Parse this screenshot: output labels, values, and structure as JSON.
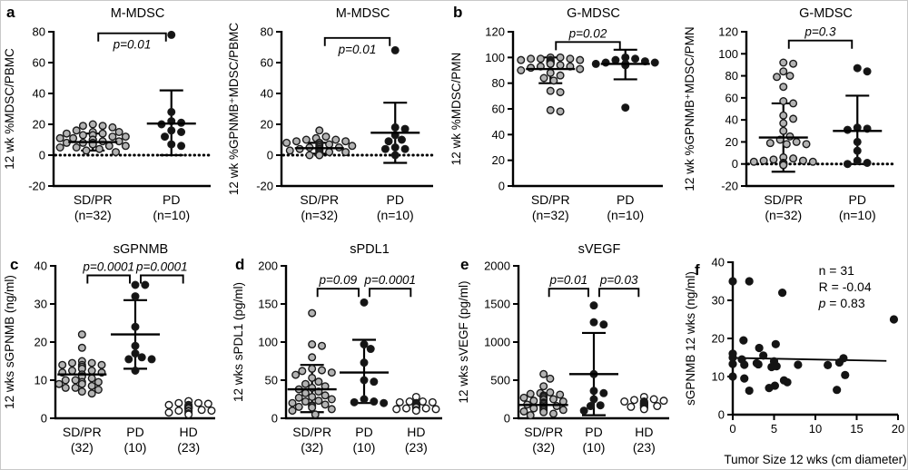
{
  "figure": {
    "background": "#ffffff",
    "border_color": "#c9c9c9",
    "panel_labels": {
      "a": "a",
      "b": "b",
      "c": "c",
      "d": "d",
      "e": "e",
      "f": "f"
    }
  },
  "colors": {
    "axis": "#000000",
    "gray_dot": "#b3b3b3",
    "black_dot": "#141414",
    "open_dot": "#ffffff",
    "dot_stroke": "#1a1a1a"
  },
  "chart_data": [
    {
      "id": "a1",
      "type": "dotplot",
      "title": "M-MDSC",
      "ylabel": "12 wk %MDSC/PBMC",
      "ylim": [
        -20,
        80
      ],
      "yticks": [
        -20,
        0,
        20,
        40,
        60,
        80
      ],
      "zero_dotted": true,
      "groups": [
        {
          "label": "SD/PR",
          "sublabel": "(n=32)",
          "fill": "gray",
          "values": [
            20,
            19,
            19,
            18,
            16,
            15,
            15,
            14,
            14,
            13,
            13,
            12,
            12,
            11,
            11,
            10,
            10,
            10,
            9,
            9,
            8,
            8,
            8,
            7,
            7,
            6,
            6,
            5,
            5,
            4,
            3,
            2
          ],
          "mean": 8.5,
          "err_lo": 3,
          "err_hi": 14
        },
        {
          "label": "PD",
          "sublabel": "(n=10)",
          "fill": "black",
          "values": [
            78,
            28,
            22,
            21,
            20,
            16,
            15,
            12,
            7,
            6
          ],
          "mean": 20.5,
          "err_lo": 0,
          "err_hi": 42
        }
      ],
      "comparisons": [
        {
          "g1": 0,
          "g2": 1,
          "y": 79,
          "label": "p=0.01",
          "label_side": "below"
        }
      ]
    },
    {
      "id": "a2",
      "type": "dotplot",
      "title": "M-MDSC",
      "ylabel": "12 wk %GPNMB⁺MDSC/PBMC",
      "ylim": [
        -20,
        80
      ],
      "yticks": [
        -20,
        0,
        20,
        40,
        60,
        80
      ],
      "zero_dotted": true,
      "groups": [
        {
          "label": "SD/PR",
          "sublabel": "(n=32)",
          "fill": "gray",
          "values": [
            16,
            12,
            11,
            10,
            10,
            9,
            9,
            8,
            8,
            8,
            7,
            7,
            6,
            6,
            5,
            5,
            5,
            4,
            4,
            4,
            3,
            3,
            3,
            2,
            2,
            2,
            1,
            1,
            1,
            0,
            0,
            0
          ],
          "mean": 4.5,
          "err_lo": 1,
          "err_hi": 8
        },
        {
          "label": "PD",
          "sublabel": "(n=10)",
          "fill": "black",
          "values": [
            68,
            18,
            17,
            13,
            10,
            9,
            5,
            4,
            4,
            0
          ],
          "mean": 14.5,
          "err_lo": -5,
          "err_hi": 34
        }
      ],
      "comparisons": [
        {
          "g1": 0,
          "g2": 1,
          "y": 76,
          "label": "p=0.01",
          "label_side": "below"
        }
      ]
    },
    {
      "id": "b1",
      "type": "dotplot",
      "title": "G-MDSC",
      "ylabel": "12 wk %MDSC/PMN",
      "ylim": [
        0,
        120
      ],
      "yticks": [
        0,
        20,
        40,
        60,
        80,
        100,
        120
      ],
      "zero_dotted": false,
      "groups": [
        {
          "label": "SD/PR",
          "sublabel": "(n=32)",
          "fill": "gray",
          "values": [
            100,
            100,
            99,
            99,
            99,
            98,
            98,
            98,
            98,
            97,
            97,
            97,
            96,
            96,
            96,
            95,
            95,
            95,
            94,
            93,
            93,
            92,
            91,
            90,
            88,
            86,
            84,
            82,
            74,
            73,
            59,
            58
          ],
          "mean": 91,
          "err_lo": 80,
          "err_hi": 100
        },
        {
          "label": "PD",
          "sublabel": "(n=10)",
          "fill": "black",
          "values": [
            100,
            99,
            98,
            97,
            96,
            96,
            95,
            95,
            94,
            61
          ],
          "mean": 95,
          "err_lo": 83,
          "err_hi": 106
        }
      ],
      "comparisons": [
        {
          "g1": 0,
          "g2": 1,
          "y": 112,
          "label": "p=0.02",
          "label_side": "above"
        }
      ]
    },
    {
      "id": "b2",
      "type": "dotplot",
      "title": "G-MDSC",
      "ylabel": "12 wk %GPNMB⁺MDSC/PMN",
      "ylim": [
        -20,
        120
      ],
      "yticks": [
        -20,
        0,
        20,
        40,
        60,
        80,
        100,
        120
      ],
      "zero_dotted": true,
      "groups": [
        {
          "label": "SD/PR",
          "sublabel": "(n=32)",
          "fill": "gray",
          "values": [
            92,
            91,
            84,
            80,
            79,
            70,
            57,
            55,
            44,
            41,
            37,
            30,
            25,
            22,
            20,
            19,
            18,
            18,
            6,
            5,
            4,
            3,
            3,
            2,
            2,
            1,
            1,
            0,
            0,
            0,
            -1,
            -1
          ],
          "mean": 24,
          "err_lo": -7,
          "err_hi": 55
        },
        {
          "label": "PD",
          "sublabel": "(n=10)",
          "fill": "black",
          "values": [
            87,
            84,
            33,
            32,
            31,
            20,
            12,
            3,
            1,
            0
          ],
          "mean": 30,
          "err_lo": 0,
          "err_hi": 62
        }
      ],
      "comparisons": [
        {
          "g1": 0,
          "g2": 1,
          "y": 112,
          "label": "p=0.3",
          "label_side": "above"
        }
      ]
    },
    {
      "id": "c",
      "type": "dotplot",
      "title": "sGPNMB",
      "ylabel": "12 wks sGPNMB (ng/ml)",
      "ylim": [
        0,
        40
      ],
      "yticks": [
        0,
        10,
        20,
        30,
        40
      ],
      "zero_dotted": false,
      "groups": [
        {
          "label": "SD/PR",
          "sublabel": "(32)",
          "fill": "gray",
          "values": [
            22,
            18.5,
            15,
            14.5,
            14.5,
            14,
            14,
            14,
            13.5,
            13.5,
            13,
            13,
            12.5,
            12.5,
            12,
            12,
            11.5,
            11,
            11,
            10.5,
            10,
            10,
            9.5,
            9.5,
            9,
            9,
            8.5,
            8,
            8,
            7.5,
            7,
            6.5
          ],
          "mean": 11.5,
          "err_lo": null,
          "err_hi": null
        },
        {
          "label": "PD",
          "sublabel": "(10)",
          "fill": "black",
          "values": [
            35,
            35,
            32,
            24,
            19,
            17,
            16,
            15.5,
            15.5,
            12.5
          ],
          "mean": 22,
          "err_lo": 13,
          "err_hi": 31
        },
        {
          "label": "HD",
          "sublabel": "(23)",
          "fill": "open",
          "values": [
            4.5,
            4,
            4,
            3.8,
            3.5,
            3.5,
            3.2,
            3,
            3,
            3,
            2.8,
            2.8,
            2.6,
            2.5,
            2.5,
            2.2,
            2,
            2,
            2,
            1.8,
            1.5,
            1.3,
            1
          ],
          "mean": null,
          "err_lo": null,
          "err_hi": null
        }
      ],
      "comparisons": [
        {
          "g1": 0,
          "g2": 1,
          "y": 37.5,
          "label": "p=0.0001",
          "label_side": "above"
        },
        {
          "g1": 1,
          "g2": 2,
          "y": 37.5,
          "label": "p=0.0001",
          "label_side": "above"
        }
      ]
    },
    {
      "id": "d",
      "type": "dotplot",
      "title": "sPDL1",
      "ylabel": "12 wks sPDL1 (pg/ml)",
      "ylim": [
        0,
        200
      ],
      "yticks": [
        0,
        50,
        100,
        150,
        200
      ],
      "zero_dotted": false,
      "groups": [
        {
          "label": "SD/PR",
          "sublabel": "(32)",
          "fill": "gray",
          "values": [
            138,
            97,
            95,
            80,
            65,
            63,
            62,
            60,
            57,
            53,
            48,
            45,
            42,
            40,
            38,
            35,
            33,
            30,
            28,
            27,
            25,
            23,
            22,
            20,
            18,
            17,
            16,
            15,
            14,
            12,
            10,
            5
          ],
          "mean": 38,
          "err_lo": 8,
          "err_hi": 70
        },
        {
          "label": "PD",
          "sublabel": "(10)",
          "fill": "black",
          "values": [
            152,
            97,
            91,
            73,
            50,
            48,
            25,
            22,
            21,
            20
          ],
          "mean": 60,
          "err_lo": 20,
          "err_hi": 103
        },
        {
          "label": "HD",
          "sublabel": "(23)",
          "fill": "open",
          "values": [
            28,
            22,
            22,
            21,
            21,
            20,
            20,
            19,
            18,
            18,
            17,
            17,
            16,
            16,
            15,
            15,
            14,
            13,
            13,
            12,
            12,
            11,
            10
          ],
          "mean": null,
          "err_lo": null,
          "err_hi": null
        }
      ],
      "comparisons": [
        {
          "g1": 0,
          "g2": 1,
          "y": 170,
          "label": "p=0.09",
          "label_side": "above"
        },
        {
          "g1": 1,
          "g2": 2,
          "y": 170,
          "label": "p=0.0001",
          "label_side": "above"
        }
      ]
    },
    {
      "id": "e",
      "type": "dotplot",
      "title": "sVEGF",
      "ylabel": "12 wks sVEGF (pg/ml)",
      "ylim": [
        0,
        2000
      ],
      "yticks": [
        0,
        500,
        1000,
        1500,
        2000
      ],
      "zero_dotted": false,
      "groups": [
        {
          "label": "SD/PR",
          "sublabel": "(32)",
          "fill": "gray",
          "values": [
            580,
            520,
            420,
            340,
            330,
            320,
            310,
            300,
            290,
            280,
            270,
            260,
            250,
            240,
            230,
            220,
            210,
            200,
            190,
            180,
            170,
            160,
            150,
            140,
            130,
            120,
            110,
            100,
            90,
            80,
            60,
            40
          ],
          "mean": 175,
          "err_lo": null,
          "err_hi": null
        },
        {
          "label": "PD",
          "sublabel": "(10)",
          "fill": "black",
          "values": [
            1480,
            1260,
            1230,
            580,
            360,
            330,
            250,
            170,
            160,
            100
          ],
          "mean": 580,
          "err_lo": 40,
          "err_hi": 1120
        },
        {
          "label": "HD",
          "sublabel": "(23)",
          "fill": "open",
          "values": [
            280,
            250,
            240,
            230,
            220,
            220,
            210,
            200,
            200,
            190,
            190,
            180,
            180,
            170,
            170,
            160,
            160,
            150,
            150,
            140,
            140,
            130,
            120
          ],
          "mean": null,
          "err_lo": null,
          "err_hi": null
        }
      ],
      "comparisons": [
        {
          "g1": 0,
          "g2": 1,
          "y": 1700,
          "label": "p=0.01",
          "label_side": "above"
        },
        {
          "g1": 1,
          "g2": 2,
          "y": 1700,
          "label": "p=0.03",
          "label_side": "above"
        }
      ]
    },
    {
      "id": "f",
      "type": "scatter",
      "title": "",
      "xlabel": "Tumor Size 12 wks (cm diameter)",
      "ylabel": "sGPNMB 12 wks  (ng/ml)",
      "xlim": [
        0,
        20
      ],
      "xticks": [
        0,
        5,
        10,
        15,
        20
      ],
      "ylim": [
        0,
        40
      ],
      "yticks": [
        0,
        10,
        20,
        30,
        40
      ],
      "points": [
        [
          0,
          35
        ],
        [
          2,
          35
        ],
        [
          6,
          32
        ],
        [
          19.5,
          25
        ],
        [
          1.3,
          19.5
        ],
        [
          5.2,
          18.5
        ],
        [
          3.2,
          17.5
        ],
        [
          0,
          16
        ],
        [
          3.7,
          15.5
        ],
        [
          0,
          15
        ],
        [
          13.4,
          14.8
        ],
        [
          1.1,
          14.5
        ],
        [
          5,
          14
        ],
        [
          0,
          13.3
        ],
        [
          1.4,
          13.1
        ],
        [
          2.9,
          13.5
        ],
        [
          3.1,
          13.2
        ],
        [
          4.7,
          12.5
        ],
        [
          5.3,
          12.7
        ],
        [
          7.9,
          13.1
        ],
        [
          11.5,
          13
        ],
        [
          12.9,
          13.7
        ],
        [
          0,
          10
        ],
        [
          1.4,
          9.5
        ],
        [
          13.6,
          10.4
        ],
        [
          6.2,
          9
        ],
        [
          6.6,
          8.5
        ],
        [
          5.1,
          7.6
        ],
        [
          4.4,
          7
        ],
        [
          2,
          6.3
        ],
        [
          12.6,
          6.5
        ]
      ],
      "trend": {
        "x1": 0,
        "y1": 14.9,
        "x2": 18.6,
        "y2": 14.1
      },
      "annotations": [
        "n = 31",
        "R = -0.04",
        "p = 0.83"
      ]
    }
  ]
}
